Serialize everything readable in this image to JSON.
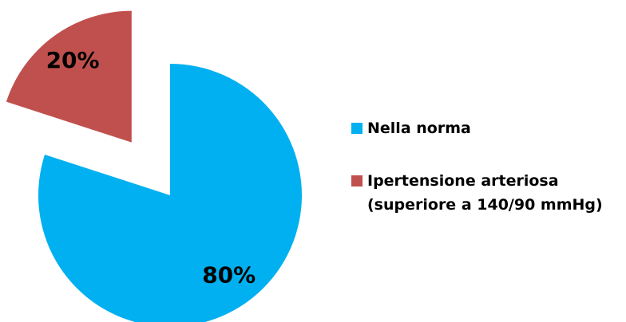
{
  "chart_data": {
    "type": "pie",
    "categories": [
      "Nella norma",
      "Ipertensione arteriosa (superiore a 140/90 mmHg)"
    ],
    "values": [
      80,
      20
    ],
    "value_labels": [
      "80%",
      "20%"
    ],
    "colors": [
      "#00b0f0",
      "#c0504d"
    ],
    "legend": "right"
  }
}
